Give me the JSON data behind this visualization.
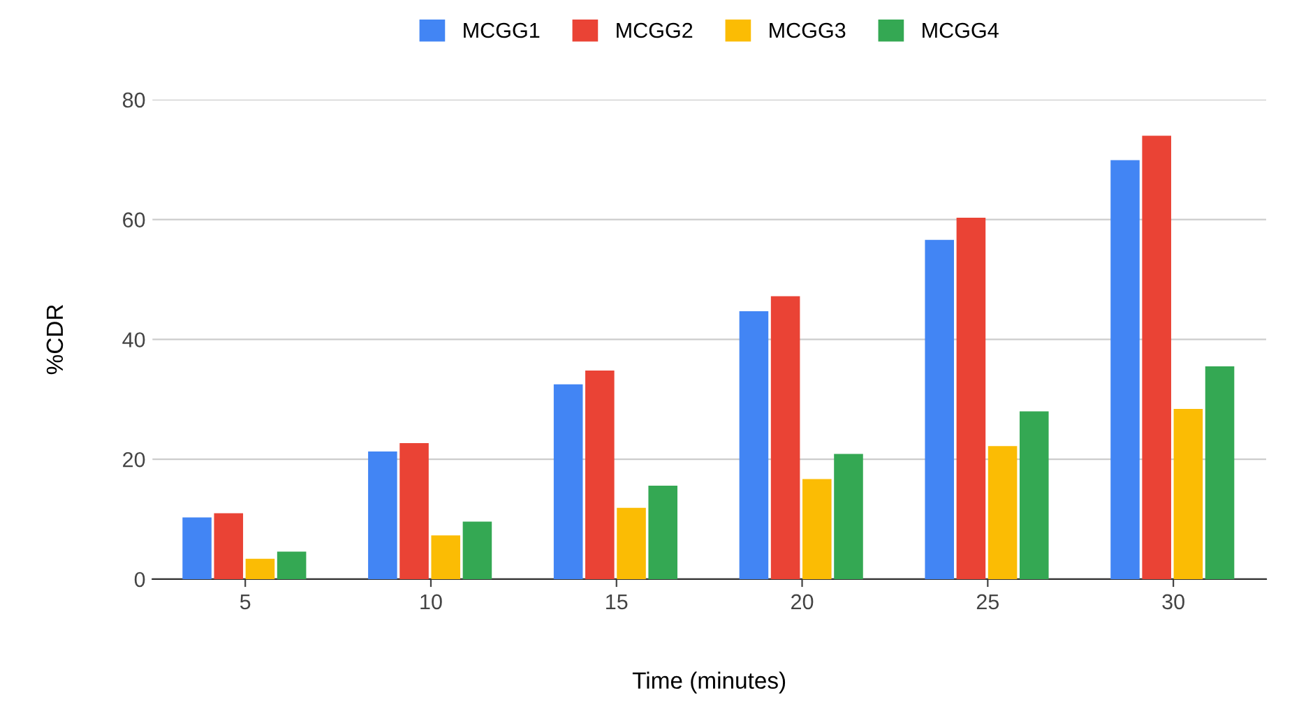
{
  "chart_data": {
    "type": "bar",
    "xlabel": "Time (minutes)",
    "ylabel": "%CDR",
    "categories": [
      "5",
      "10",
      "15",
      "20",
      "25",
      "30"
    ],
    "series": [
      {
        "name": "MCGG1",
        "color": "#4285f4",
        "values": [
          10.3,
          21.3,
          32.5,
          44.7,
          56.6,
          69.9
        ]
      },
      {
        "name": "MCGG2",
        "color": "#ea4335",
        "values": [
          11.0,
          22.7,
          34.8,
          47.2,
          60.3,
          74.0
        ]
      },
      {
        "name": "MCGG3",
        "color": "#fbbc04",
        "values": [
          3.4,
          7.3,
          11.9,
          16.7,
          22.2,
          28.4
        ]
      },
      {
        "name": "MCGG4",
        "color": "#34a853",
        "values": [
          4.6,
          9.6,
          15.6,
          20.9,
          28.0,
          35.5
        ]
      }
    ],
    "ylim": [
      0,
      80
    ],
    "yticks": [
      0,
      20,
      40,
      60,
      80
    ],
    "grid": "y",
    "legend": "top"
  }
}
